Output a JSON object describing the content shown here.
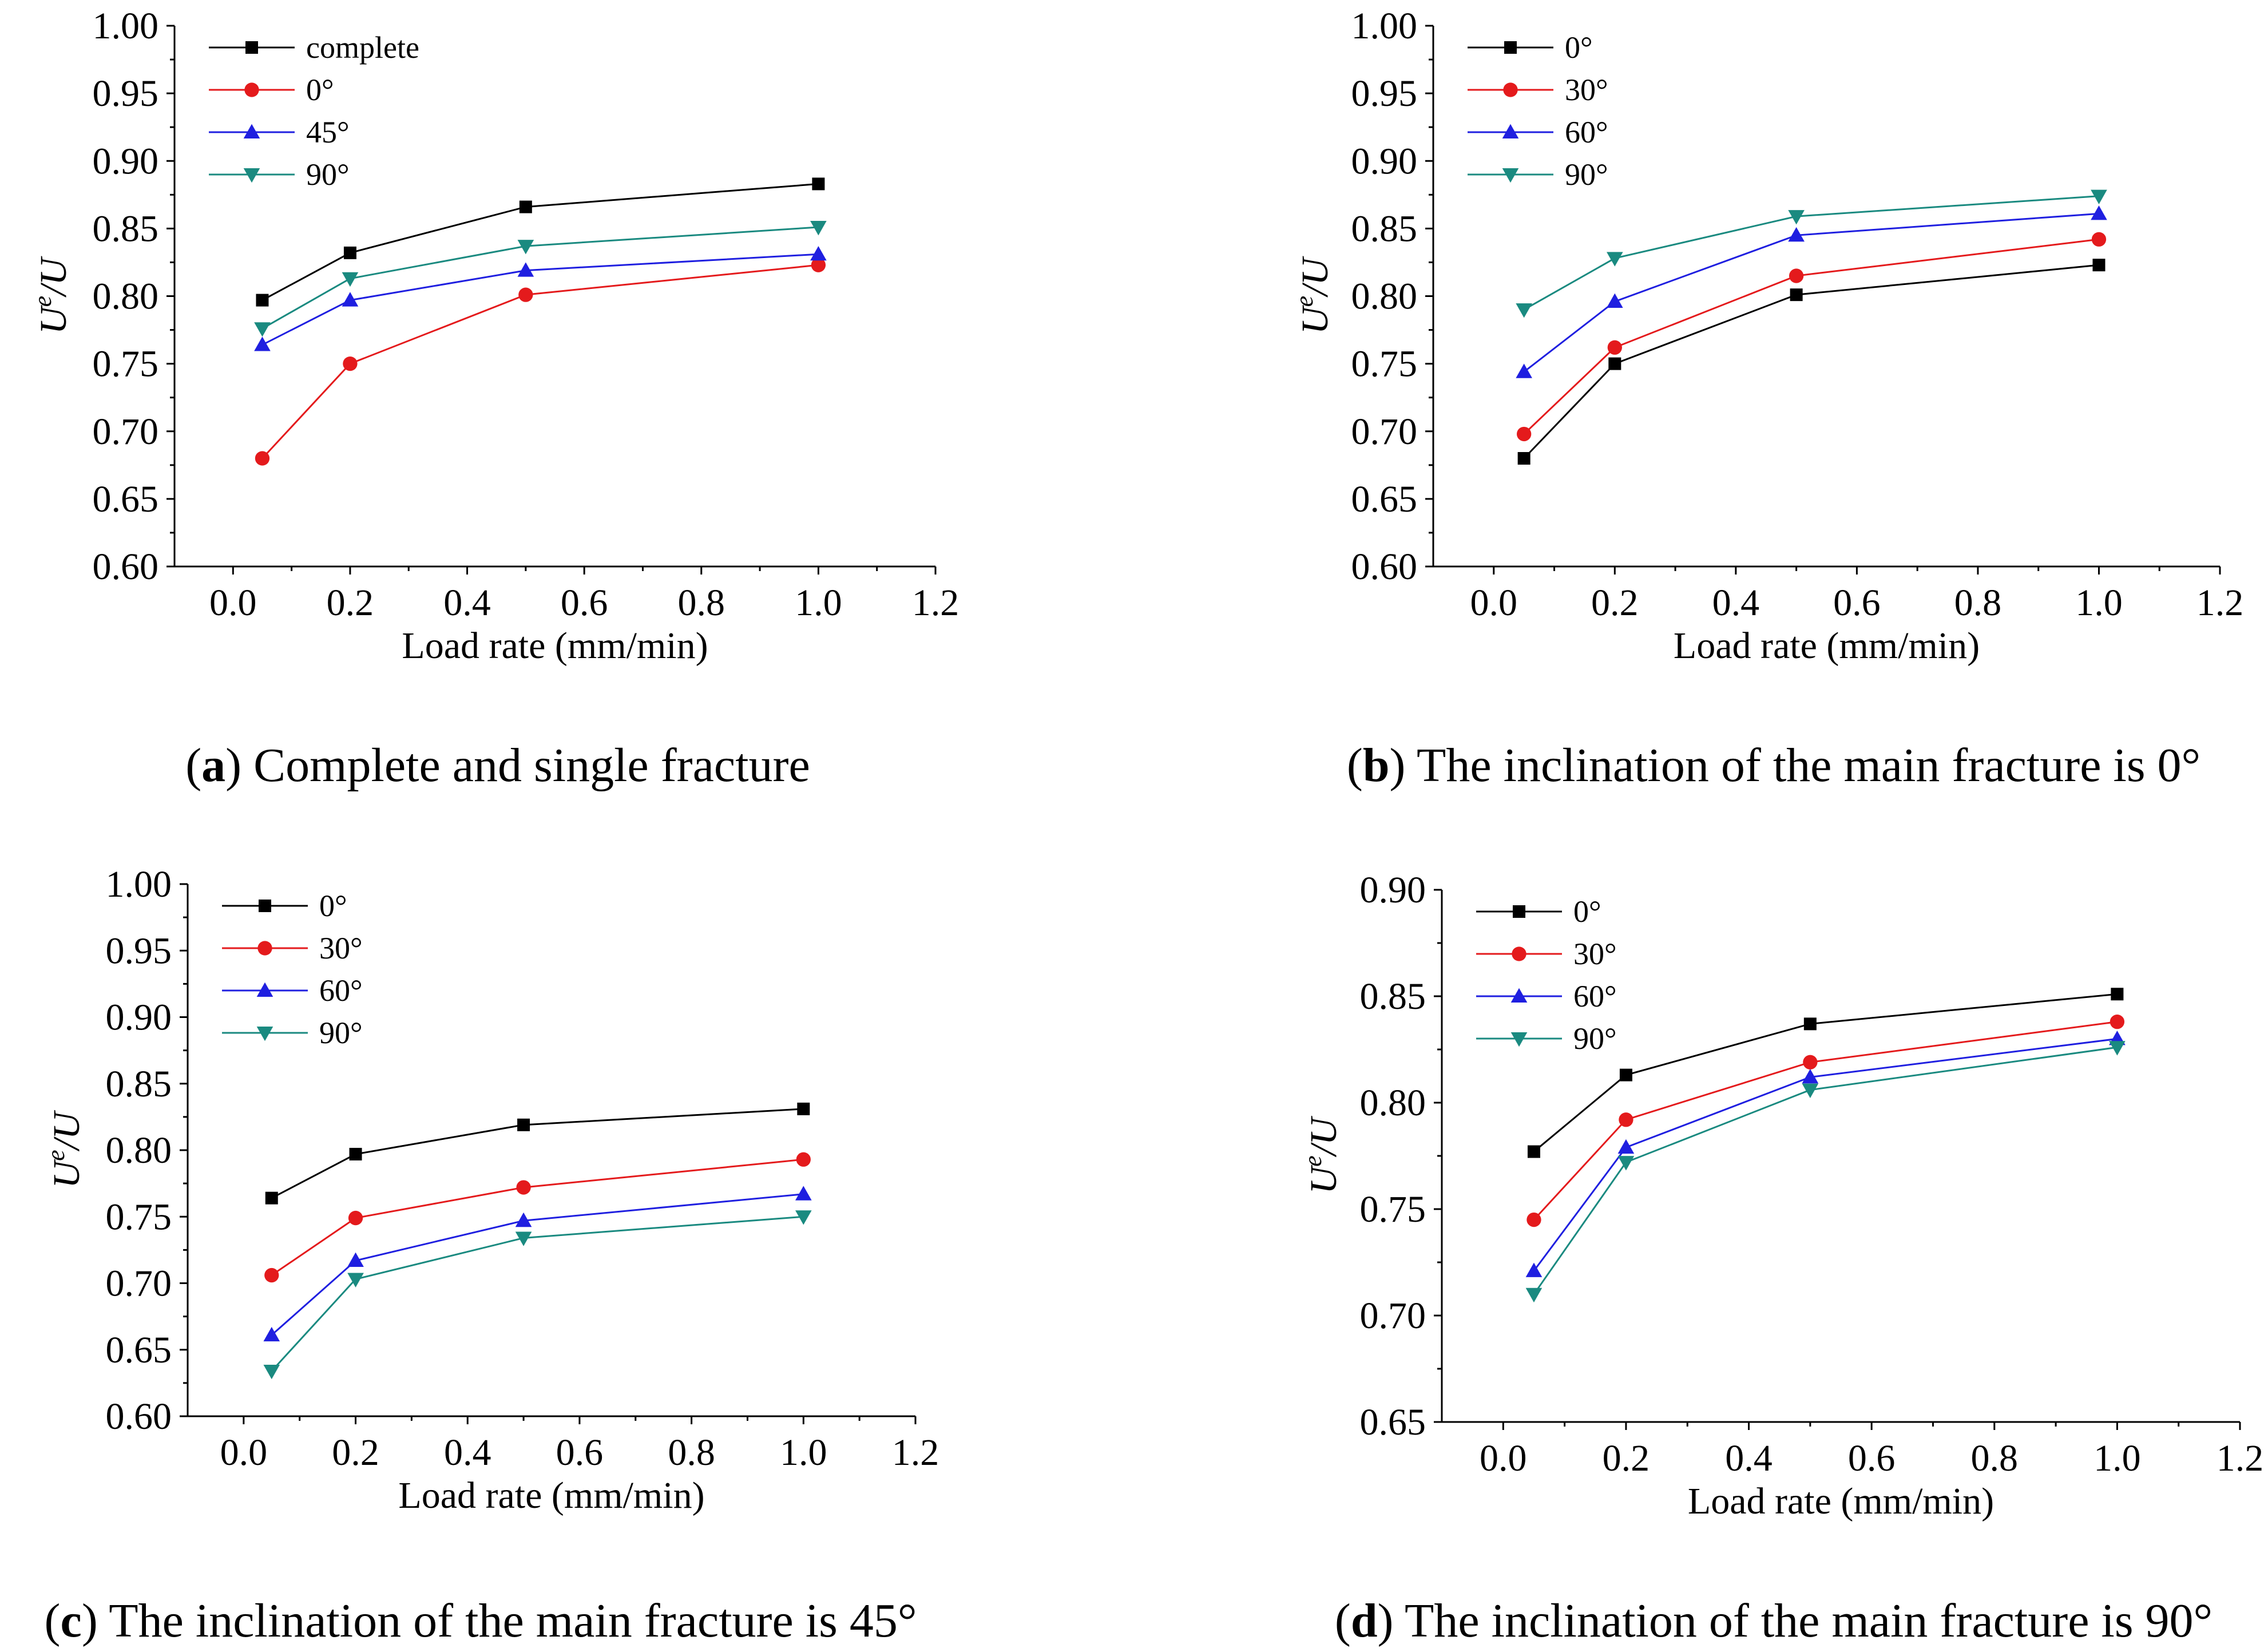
{
  "chart_data": [
    {
      "type": "line",
      "panel": "a",
      "caption_letter": "a",
      "caption_text": "Complete and single fracture",
      "xlabel": "Load rate (mm/min)",
      "ylabel_main": "U",
      "ylabel_sup": "e",
      "ylabel_tail": "/U",
      "xlim": [
        -0.1,
        1.2
      ],
      "ylim": [
        0.6,
        1.0
      ],
      "xticks": [
        "0.0",
        "0.2",
        "0.4",
        "0.6",
        "0.8",
        "1.0",
        "1.2"
      ],
      "yticks": [
        "0.60",
        "0.65",
        "0.70",
        "0.75",
        "0.80",
        "0.85",
        "0.90",
        "0.95",
        "1.00"
      ],
      "x": [
        0.05,
        0.2,
        0.5,
        1.0
      ],
      "legend_position": "top-left",
      "series": [
        {
          "name": "complete",
          "color": "#000000",
          "marker": "square",
          "values": [
            0.797,
            0.832,
            0.866,
            0.883
          ]
        },
        {
          "name": "0°",
          "color": "#e41a1c",
          "marker": "circle",
          "values": [
            0.68,
            0.75,
            0.801,
            0.823
          ]
        },
        {
          "name": "45°",
          "color": "#1f1fe0",
          "marker": "triangle-up",
          "values": [
            0.764,
            0.797,
            0.819,
            0.831
          ]
        },
        {
          "name": "90°",
          "color": "#1a8a80",
          "marker": "triangle-down",
          "values": [
            0.776,
            0.813,
            0.837,
            0.851
          ]
        }
      ]
    },
    {
      "type": "line",
      "panel": "b",
      "caption_letter": "b",
      "caption_text": "The inclination of the main fracture is 0°",
      "xlabel": "Load rate (mm/min)",
      "ylabel_main": "U",
      "ylabel_sup": "e",
      "ylabel_tail": "/U",
      "xlim": [
        -0.1,
        1.2
      ],
      "ylim": [
        0.6,
        1.0
      ],
      "xticks": [
        "0.0",
        "0.2",
        "0.4",
        "0.6",
        "0.8",
        "1.0",
        "1.2"
      ],
      "yticks": [
        "0.60",
        "0.65",
        "0.70",
        "0.75",
        "0.80",
        "0.85",
        "0.90",
        "0.95",
        "1.00"
      ],
      "x": [
        0.05,
        0.2,
        0.5,
        1.0
      ],
      "legend_position": "top-left",
      "series": [
        {
          "name": "0°",
          "color": "#000000",
          "marker": "square",
          "values": [
            0.68,
            0.75,
            0.801,
            0.823
          ]
        },
        {
          "name": "30°",
          "color": "#e41a1c",
          "marker": "circle",
          "values": [
            0.698,
            0.762,
            0.815,
            0.842
          ]
        },
        {
          "name": "60°",
          "color": "#1f1fe0",
          "marker": "triangle-up",
          "values": [
            0.744,
            0.796,
            0.845,
            0.861
          ]
        },
        {
          "name": "90°",
          "color": "#1a8a80",
          "marker": "triangle-down",
          "values": [
            0.79,
            0.828,
            0.859,
            0.874
          ]
        }
      ]
    },
    {
      "type": "line",
      "panel": "c",
      "caption_letter": "c",
      "caption_text": "The inclination of the main fracture is 45°",
      "xlabel": "Load rate (mm/min)",
      "ylabel_main": "U",
      "ylabel_sup": "e",
      "ylabel_tail": "/U",
      "xlim": [
        -0.1,
        1.2
      ],
      "ylim": [
        0.6,
        1.0
      ],
      "xticks": [
        "0.0",
        "0.2",
        "0.4",
        "0.6",
        "0.8",
        "1.0",
        "1.2"
      ],
      "yticks": [
        "0.60",
        "0.65",
        "0.70",
        "0.75",
        "0.80",
        "0.85",
        "0.90",
        "0.95",
        "1.00"
      ],
      "x": [
        0.05,
        0.2,
        0.5,
        1.0
      ],
      "legend_position": "top-left",
      "series": [
        {
          "name": "0°",
          "color": "#000000",
          "marker": "square",
          "values": [
            0.764,
            0.797,
            0.819,
            0.831
          ]
        },
        {
          "name": "30°",
          "color": "#e41a1c",
          "marker": "circle",
          "values": [
            0.706,
            0.749,
            0.772,
            0.793
          ]
        },
        {
          "name": "60°",
          "color": "#1f1fe0",
          "marker": "triangle-up",
          "values": [
            0.661,
            0.717,
            0.747,
            0.767
          ]
        },
        {
          "name": "90°",
          "color": "#1a8a80",
          "marker": "triangle-down",
          "values": [
            0.634,
            0.703,
            0.734,
            0.75
          ]
        }
      ]
    },
    {
      "type": "line",
      "panel": "d",
      "caption_letter": "d",
      "caption_text": "The inclination of the main fracture is 90°",
      "xlabel": "Load rate (mm/min)",
      "ylabel_main": "U",
      "ylabel_sup": "e",
      "ylabel_tail": "/U",
      "xlim": [
        -0.1,
        1.2
      ],
      "ylim": [
        0.65,
        0.9
      ],
      "xticks": [
        "0.0",
        "0.2",
        "0.4",
        "0.6",
        "0.8",
        "1.0",
        "1.2"
      ],
      "yticks": [
        "0.65",
        "0.70",
        "0.75",
        "0.80",
        "0.85",
        "0.90"
      ],
      "x": [
        0.05,
        0.2,
        0.5,
        1.0
      ],
      "legend_position": "top-left",
      "series": [
        {
          "name": "0°",
          "color": "#000000",
          "marker": "square",
          "values": [
            0.777,
            0.813,
            0.837,
            0.851
          ]
        },
        {
          "name": "30°",
          "color": "#e41a1c",
          "marker": "circle",
          "values": [
            0.745,
            0.792,
            0.819,
            0.838
          ]
        },
        {
          "name": "60°",
          "color": "#1f1fe0",
          "marker": "triangle-up",
          "values": [
            0.721,
            0.779,
            0.812,
            0.83
          ]
        },
        {
          "name": "90°",
          "color": "#1a8a80",
          "marker": "triangle-down",
          "values": [
            0.71,
            0.772,
            0.806,
            0.826
          ]
        }
      ]
    }
  ]
}
